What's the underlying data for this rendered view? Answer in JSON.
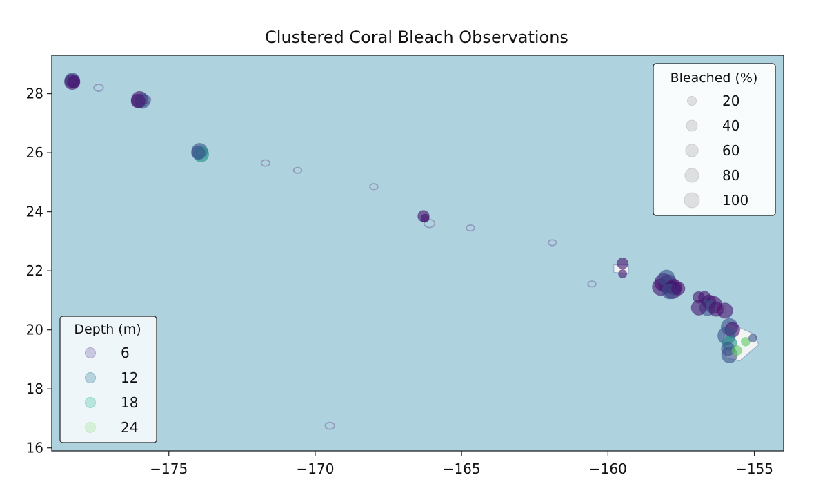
{
  "chart_data": {
    "type": "scatter",
    "title": "Clustered Coral Bleach Observations",
    "xlabel": "",
    "ylabel": "",
    "xlim": [
      -179,
      -154
    ],
    "ylim": [
      15.9,
      29.3
    ],
    "x_ticks": [
      -175,
      -170,
      -165,
      -160,
      -155
    ],
    "x_tick_labels": [
      "−175",
      "−170",
      "−165",
      "−160",
      "−155"
    ],
    "y_ticks": [
      16,
      18,
      20,
      22,
      24,
      26,
      28
    ],
    "y_tick_labels": [
      "16",
      "18",
      "20",
      "22",
      "24",
      "26",
      "28"
    ],
    "grid": false,
    "background_color": "#aed3df",
    "size_legend": {
      "title": "Bleached (%)",
      "placement": "upper right",
      "entries": [
        {
          "label": "20",
          "value": 20
        },
        {
          "label": "40",
          "value": 40
        },
        {
          "label": "60",
          "value": 60
        },
        {
          "label": "80",
          "value": 80
        },
        {
          "label": "100",
          "value": 100
        }
      ]
    },
    "color_legend": {
      "title": "Depth (m)",
      "placement": "lower left",
      "entries": [
        {
          "label": "6",
          "value": 6,
          "color": "#7f6fb2"
        },
        {
          "label": "12",
          "value": 12,
          "color": "#4f8fa8"
        },
        {
          "label": "18",
          "value": 18,
          "color": "#52c3ad"
        },
        {
          "label": "24",
          "value": 24,
          "color": "#a8e39a"
        }
      ]
    },
    "depth_colors": {
      "shallow": "#44126e",
      "mid": "#3b528b",
      "deep": "#21918c",
      "deepest": "#5ec962"
    },
    "land_contours": [
      {
        "x": -178.3,
        "y": 28.4,
        "r": 0.25
      },
      {
        "x": -177.4,
        "y": 28.2,
        "r": 0.25
      },
      {
        "x": -175.8,
        "y": 27.8,
        "r": 0.3
      },
      {
        "x": -173.9,
        "y": 26.0,
        "r": 0.25
      },
      {
        "x": -171.7,
        "y": 25.65,
        "r": 0.22
      },
      {
        "x": -170.6,
        "y": 25.4,
        "r": 0.2
      },
      {
        "x": -168.0,
        "y": 24.85,
        "r": 0.2
      },
      {
        "x": -166.1,
        "y": 23.6,
        "r": 0.3
      },
      {
        "x": -164.7,
        "y": 23.45,
        "r": 0.2
      },
      {
        "x": -161.9,
        "y": 22.95,
        "r": 0.2
      },
      {
        "x": -160.55,
        "y": 21.55,
        "r": 0.2
      },
      {
        "x": -169.5,
        "y": 16.75,
        "r": 0.25
      }
    ],
    "points": [
      {
        "x": -178.3,
        "y": 28.45,
        "depth": 12,
        "bleached": 55
      },
      {
        "x": -178.3,
        "y": 28.4,
        "depth": 6,
        "bleached": 60
      },
      {
        "x": -178.25,
        "y": 28.4,
        "depth": 6,
        "bleached": 30
      },
      {
        "x": -176.0,
        "y": 27.8,
        "depth": 6,
        "bleached": 70
      },
      {
        "x": -175.9,
        "y": 27.75,
        "depth": 12,
        "bleached": 55
      },
      {
        "x": -176.05,
        "y": 27.75,
        "depth": 6,
        "bleached": 45
      },
      {
        "x": -173.95,
        "y": 26.05,
        "depth": 12,
        "bleached": 65
      },
      {
        "x": -173.9,
        "y": 25.95,
        "depth": 18,
        "bleached": 60
      },
      {
        "x": -174.0,
        "y": 26.0,
        "depth": 12,
        "bleached": 40
      },
      {
        "x": -166.3,
        "y": 23.85,
        "depth": 6,
        "bleached": 25
      },
      {
        "x": -166.25,
        "y": 23.78,
        "depth": 6,
        "bleached": 8
      },
      {
        "x": -159.5,
        "y": 22.25,
        "depth": 6,
        "bleached": 22
      },
      {
        "x": -159.5,
        "y": 21.9,
        "depth": 6,
        "bleached": 8
      },
      {
        "x": -158.1,
        "y": 21.6,
        "depth": 6,
        "bleached": 90
      },
      {
        "x": -157.95,
        "y": 21.55,
        "depth": 6,
        "bleached": 100
      },
      {
        "x": -158.2,
        "y": 21.45,
        "depth": 6,
        "bleached": 75
      },
      {
        "x": -158.0,
        "y": 21.75,
        "depth": 12,
        "bleached": 70
      },
      {
        "x": -157.8,
        "y": 21.35,
        "depth": 6,
        "bleached": 85
      },
      {
        "x": -157.75,
        "y": 21.45,
        "depth": 6,
        "bleached": 60
      },
      {
        "x": -157.9,
        "y": 21.3,
        "depth": 12,
        "bleached": 55
      },
      {
        "x": -157.6,
        "y": 21.4,
        "depth": 6,
        "bleached": 40
      },
      {
        "x": -156.7,
        "y": 21.1,
        "depth": 6,
        "bleached": 30
      },
      {
        "x": -156.9,
        "y": 21.1,
        "depth": 6,
        "bleached": 25
      },
      {
        "x": -156.55,
        "y": 20.95,
        "depth": 6,
        "bleached": 45
      },
      {
        "x": -156.4,
        "y": 20.85,
        "depth": 6,
        "bleached": 80
      },
      {
        "x": -156.6,
        "y": 20.75,
        "depth": 12,
        "bleached": 65
      },
      {
        "x": -156.3,
        "y": 20.7,
        "depth": 6,
        "bleached": 50
      },
      {
        "x": -156.9,
        "y": 20.75,
        "depth": 6,
        "bleached": 55
      },
      {
        "x": -156.0,
        "y": 20.65,
        "depth": 6,
        "bleached": 60
      },
      {
        "x": -155.85,
        "y": 20.1,
        "depth": 12,
        "bleached": 75
      },
      {
        "x": -155.75,
        "y": 20.0,
        "depth": 6,
        "bleached": 55
      },
      {
        "x": -155.95,
        "y": 19.8,
        "depth": 12,
        "bleached": 85
      },
      {
        "x": -155.85,
        "y": 19.55,
        "depth": 18,
        "bleached": 50
      },
      {
        "x": -155.9,
        "y": 19.35,
        "depth": 12,
        "bleached": 40
      },
      {
        "x": -155.85,
        "y": 19.15,
        "depth": 12,
        "bleached": 65
      },
      {
        "x": -155.6,
        "y": 19.3,
        "depth": 24,
        "bleached": 15
      },
      {
        "x": -155.3,
        "y": 19.6,
        "depth": 24,
        "bleached": 10
      },
      {
        "x": -155.05,
        "y": 19.72,
        "depth": 12,
        "bleached": 8
      }
    ]
  }
}
